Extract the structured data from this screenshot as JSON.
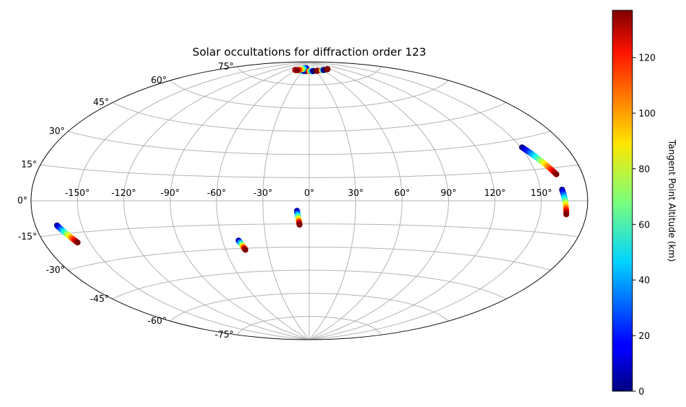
{
  "chart_data": {
    "type": "scatter",
    "projection": "aitoff",
    "title": "Solar occultations for diffraction order 123",
    "x_ticks": [
      "-150°",
      "-120°",
      "-90°",
      "-60°",
      "-30°",
      "0°",
      "30°",
      "60°",
      "90°",
      "120°",
      "150°"
    ],
    "y_ticks": [
      "75°",
      "60°",
      "45°",
      "30°",
      "15°",
      "0°",
      "-15°",
      "-30°",
      "-45°",
      "-60°",
      "-75°"
    ],
    "grid": true,
    "colorbar": {
      "label": "Tangent Point Altitude (km)",
      "min": 0,
      "max": 137,
      "ticks": [
        0,
        20,
        40,
        60,
        80,
        100,
        120
      ],
      "colormap": "jet",
      "placement": "right"
    },
    "occultations": [
      {
        "lon_start": -166,
        "lat_start": -11,
        "lon_end": -158,
        "lat_end": -19.5,
        "alt_start": 0,
        "alt_end": 137
      },
      {
        "lon_start": -49,
        "lat_start": -25,
        "lon_end": -46,
        "lat_end": -31,
        "alt_start": 0,
        "alt_end": 137
      },
      {
        "lon_start": -8,
        "lat_start": -6.5,
        "lon_end": -6.5,
        "lat_end": -15.5,
        "alt_start": 0,
        "alt_end": 137
      },
      {
        "lon_start": 151,
        "lat_start": 26,
        "lon_end": 163,
        "lat_end": 12,
        "alt_start": 0,
        "alt_end": 137
      },
      {
        "lon_start": 164,
        "lat_start": 5,
        "lon_end": 167,
        "lat_end": -6,
        "alt_start": 0,
        "alt_end": 137
      },
      {
        "lon_start": -62,
        "lat_start": 84,
        "lon_end": -15,
        "lat_end": 84,
        "alt_start": 137,
        "alt_end": 0
      },
      {
        "lon_start": -20,
        "lat_start": 86,
        "lon_end": -55,
        "lat_end": 84,
        "alt_start": 0,
        "alt_end": 137
      },
      {
        "lon_start": -3,
        "lat_start": 84,
        "lon_end": 18,
        "lat_end": 84,
        "alt_start": 137,
        "alt_end": 0
      },
      {
        "lon_start": 32,
        "lat_start": 84,
        "lon_end": 33,
        "lat_end": 84,
        "alt_start": 137,
        "alt_end": 137
      },
      {
        "lon_start": 51,
        "lat_start": 84,
        "lon_end": 65,
        "lat_end": 84,
        "alt_start": 137,
        "alt_end": 0
      },
      {
        "lon_start": 79,
        "lat_start": 84,
        "lon_end": 82,
        "lat_end": 84,
        "alt_start": 137,
        "alt_end": 137
      }
    ]
  }
}
